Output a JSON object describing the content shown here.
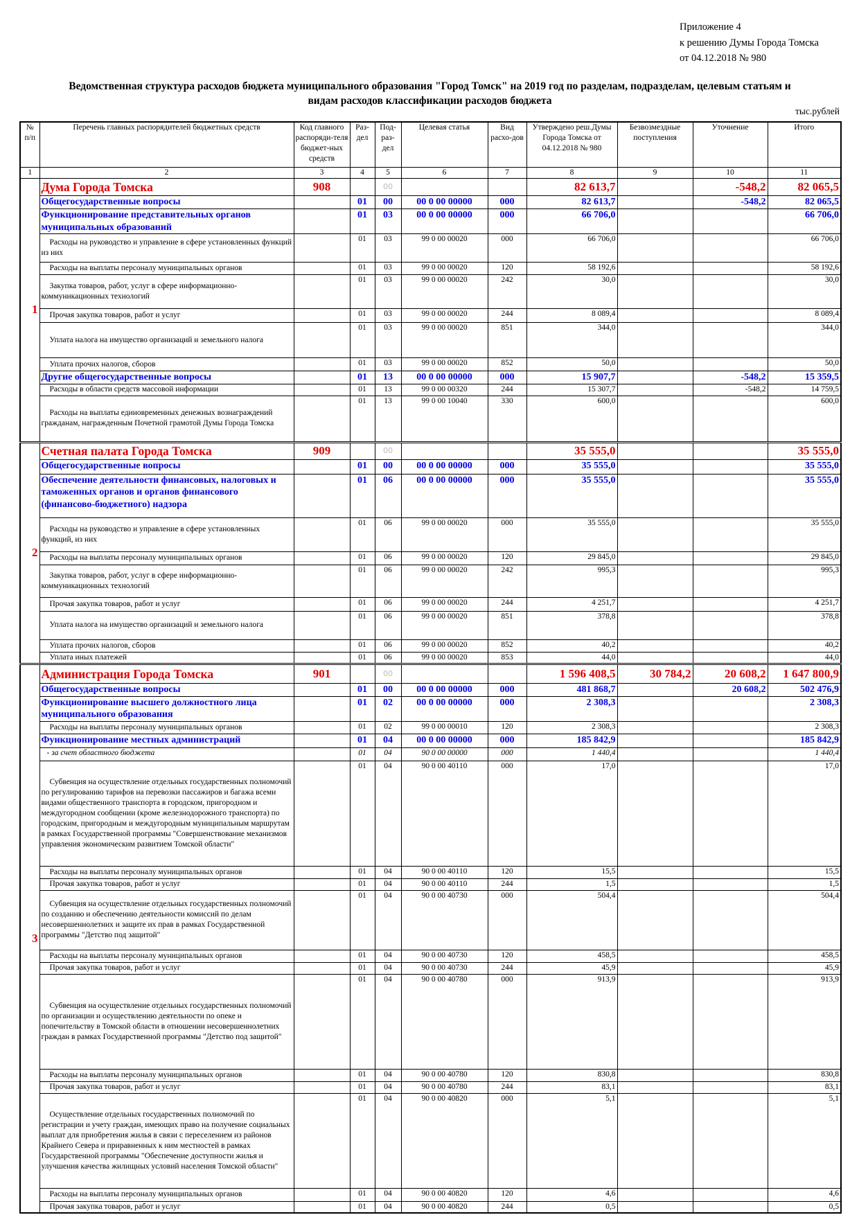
{
  "appendix": {
    "line1": "Приложение 4",
    "line2": "к решению Думы Города Томска",
    "line3": "от 04.12.2018 № 980"
  },
  "title": {
    "line1": "Ведомственная структура расходов бюджета муниципального образования \"Город Томск\" на 2019 год по разделам, подразделам, целевым статьям и",
    "line2": "видам расходов классификации расходов бюджета"
  },
  "units": "тыс.рублей",
  "colors": {
    "org": "#e00000",
    "section": "#0000e0",
    "text": "#000000"
  },
  "table": {
    "headers": [
      "№ п/п",
      "Перечень главных распорядителей бюджетных средств",
      "Код главного распоряди-теля бюджет-ных средств",
      "Раз-дел",
      "Под-раз-дел",
      "Целевая статья",
      "Вид расхо-дов",
      "Утверждено реш.Думы Города Томска от 04.12.2018 № 980",
      "Безвозмездные поступления",
      "Уточнение",
      "Итого"
    ],
    "column_numbers": [
      "1",
      "2",
      "3",
      "4",
      "5",
      "6",
      "7",
      "8",
      "9",
      "10",
      "11"
    ],
    "groups": [
      {
        "num": "1",
        "rows": [
          {
            "type": "org",
            "cells": [
              "Дума Города Томска",
              "908",
              "",
              "00",
              "",
              "",
              "82 613,7",
              "",
              "-548,2",
              "82 065,5"
            ]
          },
          {
            "type": "sec",
            "cells": [
              "Общегосударственные вопросы",
              "",
              "01",
              "00",
              "00 0 00 00000",
              "000",
              "82 613,7",
              "",
              "-548,2",
              "82 065,5"
            ]
          },
          {
            "type": "sec",
            "cells": [
              "Функционирование представительных органов муниципальных образований",
              "",
              "01",
              "03",
              "00 0 00 00000",
              "000",
              "66 706,0",
              "",
              "",
              "66 706,0"
            ]
          },
          {
            "type": "item",
            "cells": [
              "Расходы на руководство и управление в сфере установленных функций из них",
              "",
              "01",
              "03",
              "99 0 00 00020",
              "000",
              "66 706,0",
              "",
              "",
              "66 706,0"
            ]
          },
          {
            "type": "item",
            "cells": [
              "Расходы на выплаты персоналу муниципальных органов",
              "",
              "01",
              "03",
              "99 0 00 00020",
              "120",
              "58 192,6",
              "",
              "",
              "58 192,6"
            ]
          },
          {
            "type": "item",
            "cells": [
              "Закупка товаров, работ, услуг в сфере информационно-коммуникационных технологий",
              "",
              "01",
              "03",
              "99 0 00 00020",
              "242",
              "30,0",
              "",
              "",
              "30,0"
            ]
          },
          {
            "type": "item",
            "cells": [
              "Прочая закупка товаров, работ и услуг",
              "",
              "01",
              "03",
              "99 0 00 00020",
              "244",
              "8 089,4",
              "",
              "",
              "8 089,4"
            ]
          },
          {
            "type": "item",
            "cells": [
              "Уплата налога на имущество организаций и земельного налога",
              "",
              "01",
              "03",
              "99 0 00 00020",
              "851",
              "344,0",
              "",
              "",
              "344,0"
            ]
          },
          {
            "type": "item",
            "cells": [
              "Уплата прочих налогов, сборов",
              "",
              "01",
              "03",
              "99 0 00 00020",
              "852",
              "50,0",
              "",
              "",
              "50,0"
            ]
          },
          {
            "type": "sec",
            "cells": [
              "Другие общегосударственные вопросы",
              "",
              "01",
              "13",
              "00 0 00 00000",
              "000",
              "15 907,7",
              "",
              "-548,2",
              "15 359,5"
            ]
          },
          {
            "type": "item",
            "cells": [
              "Расходы в области средств массовой информации",
              "",
              "01",
              "13",
              "99 0 00 00320",
              "244",
              "15 307,7",
              "",
              "-548,2",
              "14 759,5"
            ]
          },
          {
            "type": "item",
            "cells": [
              "Расходы на выплаты единовременных денежных вознаграждений гражданам, награжденным Почетной грамотой Думы Города Томска",
              "",
              "01",
              "13",
              "99 0 00 10040",
              "330",
              "600,0",
              "",
              "",
              "600,0"
            ]
          }
        ]
      },
      {
        "num": "2",
        "rows": [
          {
            "type": "org",
            "cells": [
              "Счетная палата Города Томска",
              "909",
              "",
              "00",
              "",
              "",
              "35 555,0",
              "",
              "",
              "35 555,0"
            ]
          },
          {
            "type": "sec",
            "cells": [
              "Общегосударственные вопросы",
              "",
              "01",
              "00",
              "00 0 00 00000",
              "000",
              "35 555,0",
              "",
              "",
              "35 555,0"
            ]
          },
          {
            "type": "sec",
            "cells": [
              "Обеспечение деятельности финансовых, налоговых и таможенных органов и органов финансового (финансово-бюджетного) надзора",
              "",
              "01",
              "06",
              "00 0 00 00000",
              "000",
              "35 555,0",
              "",
              "",
              "35 555,0"
            ]
          },
          {
            "type": "item",
            "cells": [
              "Расходы на руководство и управление в сфере установленных функций, из них",
              "",
              "01",
              "06",
              "99 0 00 00020",
              "000",
              "35 555,0",
              "",
              "",
              "35 555,0"
            ]
          },
          {
            "type": "item",
            "cells": [
              "Расходы на выплаты персоналу муниципальных органов",
              "",
              "01",
              "06",
              "99 0 00 00020",
              "120",
              "29 845,0",
              "",
              "",
              "29 845,0"
            ]
          },
          {
            "type": "item",
            "cells": [
              "Закупка товаров, работ, услуг в сфере информационно-коммуникационных технологий",
              "",
              "01",
              "06",
              "99 0 00 00020",
              "242",
              "995,3",
              "",
              "",
              "995,3"
            ]
          },
          {
            "type": "item",
            "cells": [
              "Прочая закупка товаров, работ и услуг",
              "",
              "01",
              "06",
              "99 0 00 00020",
              "244",
              "4 251,7",
              "",
              "",
              "4 251,7"
            ]
          },
          {
            "type": "item",
            "cells": [
              "Уплата налога на имущество организаций и земельного налога",
              "",
              "01",
              "06",
              "99 0 00 00020",
              "851",
              "378,8",
              "",
              "",
              "378,8"
            ]
          },
          {
            "type": "item",
            "cells": [
              "Уплата прочих налогов, сборов",
              "",
              "01",
              "06",
              "99 0 00 00020",
              "852",
              "40,2",
              "",
              "",
              "40,2"
            ]
          },
          {
            "type": "item",
            "cells": [
              "Уплата иных платежей",
              "",
              "01",
              "06",
              "99 0 00 00020",
              "853",
              "44,0",
              "",
              "",
              "44,0"
            ]
          }
        ]
      },
      {
        "num": "3",
        "rows": [
          {
            "type": "org",
            "cells": [
              "Администрация Города Томска",
              "901",
              "",
              "00",
              "",
              "",
              "1 596 408,5",
              "30 784,2",
              "20 608,2",
              "1 647 800,9"
            ]
          },
          {
            "type": "sec",
            "cells": [
              "Общегосударственные вопросы",
              "",
              "01",
              "00",
              "00 0 00 00000",
              "000",
              "481 868,7",
              "",
              "20 608,2",
              "502 476,9"
            ]
          },
          {
            "type": "sec",
            "cells": [
              "Функционирование высшего должностного лица муниципального образования",
              "",
              "01",
              "02",
              "00 0 00 00000",
              "000",
              "2 308,3",
              "",
              "",
              "2 308,3"
            ]
          },
          {
            "type": "item",
            "cells": [
              "Расходы на выплаты персоналу муниципальных органов",
              "",
              "01",
              "02",
              "99 0 00 00010",
              "120",
              "2 308,3",
              "",
              "",
              "2 308,3"
            ]
          },
          {
            "type": "sec",
            "cells": [
              "Функционирование местных администраций",
              "",
              "01",
              "04",
              "00 0 00 00000",
              "000",
              "185 842,9",
              "",
              "",
              "185 842,9"
            ]
          },
          {
            "type": "ital",
            "cells": [
              "- за счет областного бюджета",
              "",
              "01",
              "04",
              "90 0 00 00000",
              "000",
              "1 440,4",
              "",
              "",
              "1 440,4"
            ]
          },
          {
            "type": "item",
            "cells": [
              "Субвенция на осуществление отдельных государственных полномочий по регулированию тарифов на перевозки пассажиров и багажа всеми видами общественного транспорта в городском, пригородном и междугородном сообщении (кроме железнодорожного транспорта) по городским, пригородным и междугородным муниципальным маршрутам в рамках Государственной программы \"Совершенствование механизмов управления экономическим развитием Томской области\"",
              "",
              "01",
              "04",
              "90 0 00 40110",
              "000",
              "17,0",
              "",
              "",
              "17,0"
            ]
          },
          {
            "type": "item",
            "cells": [
              "Расходы на выплаты персоналу муниципальных органов",
              "",
              "01",
              "04",
              "90 0 00 40110",
              "120",
              "15,5",
              "",
              "",
              "15,5"
            ]
          },
          {
            "type": "item",
            "cells": [
              "Прочая закупка товаров, работ и услуг",
              "",
              "01",
              "04",
              "90 0 00 40110",
              "244",
              "1,5",
              "",
              "",
              "1,5"
            ]
          },
          {
            "type": "item",
            "cells": [
              "Субвенция на осуществление отдельных государственных полномочий по созданию и обеспечению деятельности комиссий по делам несовершеннолетних и защите их прав в рамках Государственной программы \"Детство под защитой\"",
              "",
              "01",
              "04",
              "90 0 00 40730",
              "000",
              "504,4",
              "",
              "",
              "504,4"
            ]
          },
          {
            "type": "item",
            "cells": [
              "Расходы на выплаты персоналу муниципальных органов",
              "",
              "01",
              "04",
              "90 0 00 40730",
              "120",
              "458,5",
              "",
              "",
              "458,5"
            ]
          },
          {
            "type": "item",
            "cells": [
              "Прочая закупка товаров, работ и услуг",
              "",
              "01",
              "04",
              "90 0 00 40730",
              "244",
              "45,9",
              "",
              "",
              "45,9"
            ]
          },
          {
            "type": "item",
            "cells": [
              "Субвенция на осуществление отдельных государственных полномочий по организации и осуществлению деятельности по опеке и попечительству в Томской области в отношении несовершеннолетних граждан в рамках Государственной программы \"Детство под защитой\"",
              "",
              "01",
              "04",
              "90 0 00 40780",
              "000",
              "913,9",
              "",
              "",
              "913,9"
            ]
          },
          {
            "type": "item",
            "cells": [
              "Расходы на выплаты персоналу муниципальных органов",
              "",
              "01",
              "04",
              "90 0 00 40780",
              "120",
              "830,8",
              "",
              "",
              "830,8"
            ]
          },
          {
            "type": "item",
            "cells": [
              "Прочая закупка товаров, работ и услуг",
              "",
              "01",
              "04",
              "90 0 00 40780",
              "244",
              "83,1",
              "",
              "",
              "83,1"
            ]
          },
          {
            "type": "item",
            "cells": [
              "Осуществление отдельных государственных полномочий по регистрации и учету граждан, имеющих право на получение социальных выплат для приобретения жилья в связи с переселением из районов Крайнего Севера и приравненных к ним местностей в рамках Государственной программы \"Обеспечение доступности жилья и улучшения качества жилищных условий населения Томской области\"",
              "",
              "01",
              "04",
              "90 0 00 40820",
              "000",
              "5,1",
              "",
              "",
              "5,1"
            ]
          },
          {
            "type": "item",
            "cells": [
              "Расходы на выплаты персоналу муниципальных органов",
              "",
              "01",
              "04",
              "90 0 00 40820",
              "120",
              "4,6",
              "",
              "",
              "4,6"
            ]
          },
          {
            "type": "item",
            "cells": [
              "Прочая закупка товаров, работ и услуг",
              "",
              "01",
              "04",
              "90 0 00 40820",
              "244",
              "0,5",
              "",
              "",
              "0,5"
            ]
          }
        ]
      }
    ]
  }
}
